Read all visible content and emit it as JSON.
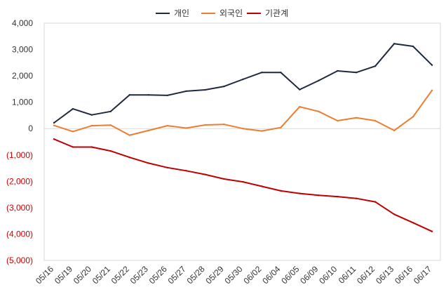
{
  "chart_data": {
    "type": "line",
    "title": "",
    "xlabel": "",
    "ylabel": "",
    "ylim": [
      -5000,
      4000
    ],
    "yticks": [
      4000,
      3000,
      2000,
      1000,
      0,
      -1000,
      -2000,
      -3000,
      -4000,
      -5000
    ],
    "ytick_labels": [
      "4,000",
      "3,000",
      "2,000",
      "1,000",
      "0",
      "(1,000)",
      "(2,000)",
      "(3,000)",
      "(4,000)",
      "(5,000)"
    ],
    "categories": [
      "05/16",
      "05/19",
      "05/20",
      "05/21",
      "05/22",
      "05/23",
      "05/26",
      "05/27",
      "05/28",
      "05/29",
      "05/30",
      "06/02",
      "06/04",
      "06/05",
      "06/09",
      "06/10",
      "06/11",
      "06/12",
      "06/13",
      "06/16",
      "06/17"
    ],
    "legend_position": "top-center",
    "grid": "horizontal-zero-line-only",
    "negative_label_color": "#cc0000",
    "series": [
      {
        "name": "개인",
        "color": "#1f2a3d",
        "values": [
          220,
          750,
          520,
          650,
          1280,
          1280,
          1260,
          1420,
          1470,
          1600,
          1870,
          2130,
          2130,
          1480,
          1820,
          2190,
          2130,
          2370,
          3220,
          3120,
          2410
        ]
      },
      {
        "name": "외국인",
        "color": "#ed7d31",
        "values": [
          120,
          -110,
          110,
          130,
          -250,
          -70,
          110,
          20,
          140,
          160,
          0,
          -90,
          40,
          830,
          650,
          300,
          410,
          300,
          -70,
          450,
          1450
        ]
      },
      {
        "name": "기관계",
        "color": "#c00000",
        "values": [
          -400,
          -700,
          -700,
          -850,
          -1090,
          -1310,
          -1480,
          -1600,
          -1740,
          -1910,
          -2020,
          -2190,
          -2360,
          -2460,
          -2530,
          -2580,
          -2650,
          -2780,
          -3250,
          -3570,
          -3900
        ]
      }
    ]
  }
}
